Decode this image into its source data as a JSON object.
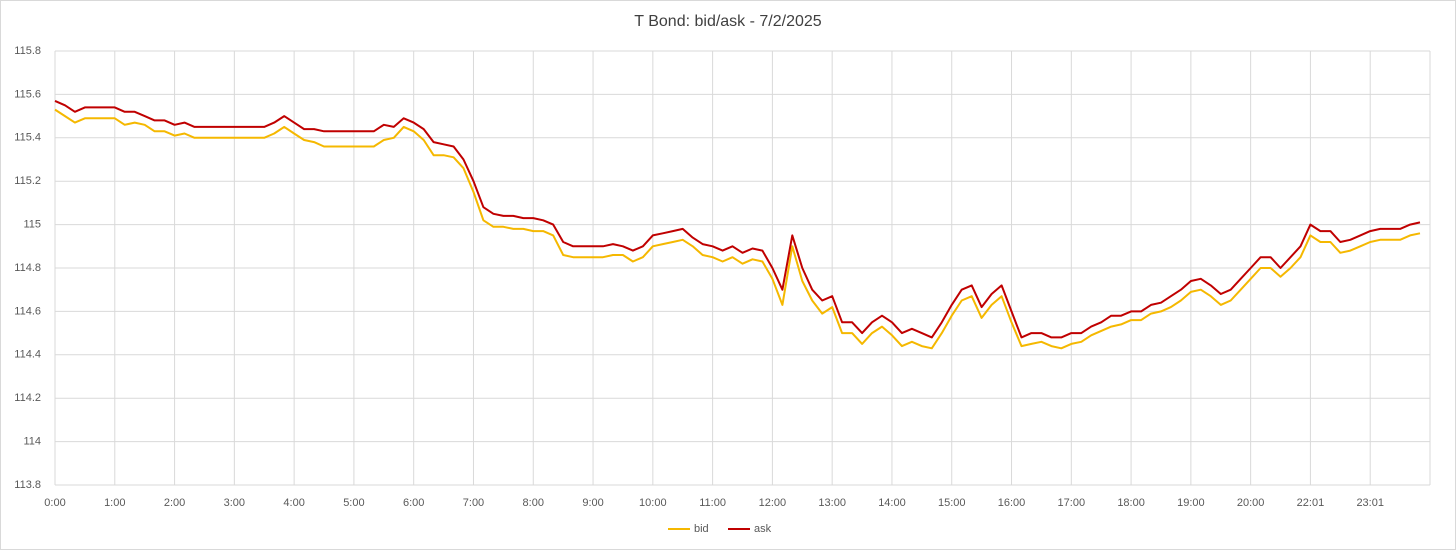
{
  "chart_data": {
    "type": "line",
    "title": "T Bond: bid/ask - 7/2/2025",
    "categories": [
      "0:00",
      null,
      null,
      null,
      null,
      null,
      "1:00",
      null,
      null,
      null,
      null,
      null,
      "2:00",
      null,
      null,
      null,
      null,
      null,
      "3:00",
      null,
      null,
      null,
      null,
      null,
      "4:00",
      null,
      null,
      null,
      null,
      null,
      "5:00",
      null,
      null,
      null,
      null,
      null,
      "6:00",
      null,
      null,
      null,
      null,
      null,
      "7:00",
      null,
      null,
      null,
      null,
      null,
      "8:00",
      null,
      null,
      null,
      null,
      null,
      "9:00",
      null,
      null,
      null,
      null,
      null,
      "10:00",
      null,
      null,
      null,
      null,
      null,
      "11:00",
      null,
      null,
      null,
      null,
      null,
      "12:00",
      null,
      null,
      null,
      null,
      null,
      "13:00",
      null,
      null,
      null,
      null,
      null,
      "14:00",
      null,
      null,
      null,
      null,
      null,
      "15:00",
      null,
      null,
      null,
      null,
      null,
      "16:00",
      null,
      null,
      null,
      null,
      null,
      "17:00",
      null,
      null,
      null,
      null,
      null,
      "18:00",
      null,
      null,
      null,
      null,
      null,
      "19:00",
      null,
      null,
      null,
      null,
      null,
      "20:00",
      null,
      null,
      null,
      null,
      null,
      "22:01",
      null,
      null,
      null,
      null,
      null,
      "23:01",
      null,
      null,
      null,
      null,
      null
    ],
    "series": [
      {
        "name": "bid",
        "color": "#f5b800",
        "values": [
          115.53,
          115.5,
          115.47,
          115.49,
          115.49,
          115.49,
          115.49,
          115.46,
          115.47,
          115.46,
          115.43,
          115.43,
          115.41,
          115.42,
          115.4,
          115.4,
          115.4,
          115.4,
          115.4,
          115.4,
          115.4,
          115.4,
          115.42,
          115.45,
          115.42,
          115.39,
          115.38,
          115.36,
          115.36,
          115.36,
          115.36,
          115.36,
          115.36,
          115.39,
          115.4,
          115.45,
          115.43,
          115.39,
          115.32,
          115.32,
          115.31,
          115.26,
          115.15,
          115.02,
          114.99,
          114.99,
          114.98,
          114.98,
          114.97,
          114.97,
          114.95,
          114.86,
          114.85,
          114.85,
          114.85,
          114.85,
          114.86,
          114.86,
          114.83,
          114.85,
          114.9,
          114.91,
          114.92,
          114.93,
          114.9,
          114.86,
          114.85,
          114.83,
          114.85,
          114.82,
          114.84,
          114.83,
          114.75,
          114.63,
          114.9,
          114.74,
          114.65,
          114.59,
          114.62,
          114.5,
          114.5,
          114.45,
          114.5,
          114.53,
          114.49,
          114.44,
          114.46,
          114.44,
          114.43,
          114.5,
          114.58,
          114.65,
          114.67,
          114.57,
          114.63,
          114.67,
          114.55,
          114.44,
          114.45,
          114.46,
          114.44,
          114.43,
          114.45,
          114.46,
          114.49,
          114.51,
          114.53,
          114.54,
          114.56,
          114.56,
          114.59,
          114.6,
          114.62,
          114.65,
          114.69,
          114.7,
          114.67,
          114.63,
          114.65,
          114.7,
          114.75,
          114.8,
          114.8,
          114.76,
          114.8,
          114.85,
          114.95,
          114.92,
          114.92,
          114.87,
          114.88,
          114.9,
          114.92,
          114.93,
          114.93,
          114.93,
          114.95,
          114.96
        ]
      },
      {
        "name": "ask",
        "color": "#c00000",
        "values": [
          115.57,
          115.55,
          115.52,
          115.54,
          115.54,
          115.54,
          115.54,
          115.52,
          115.52,
          115.5,
          115.48,
          115.48,
          115.46,
          115.47,
          115.45,
          115.45,
          115.45,
          115.45,
          115.45,
          115.45,
          115.45,
          115.45,
          115.47,
          115.5,
          115.47,
          115.44,
          115.44,
          115.43,
          115.43,
          115.43,
          115.43,
          115.43,
          115.43,
          115.46,
          115.45,
          115.49,
          115.47,
          115.44,
          115.38,
          115.37,
          115.36,
          115.3,
          115.2,
          115.08,
          115.05,
          115.04,
          115.04,
          115.03,
          115.03,
          115.02,
          115.0,
          114.92,
          114.9,
          114.9,
          114.9,
          114.9,
          114.91,
          114.9,
          114.88,
          114.9,
          114.95,
          114.96,
          114.97,
          114.98,
          114.94,
          114.91,
          114.9,
          114.88,
          114.9,
          114.87,
          114.89,
          114.88,
          114.8,
          114.7,
          114.95,
          114.8,
          114.7,
          114.65,
          114.67,
          114.55,
          114.55,
          114.5,
          114.55,
          114.58,
          114.55,
          114.5,
          114.52,
          114.5,
          114.48,
          114.55,
          114.63,
          114.7,
          114.72,
          114.62,
          114.68,
          114.72,
          114.6,
          114.48,
          114.5,
          114.5,
          114.48,
          114.48,
          114.5,
          114.5,
          114.53,
          114.55,
          114.58,
          114.58,
          114.6,
          114.6,
          114.63,
          114.64,
          114.67,
          114.7,
          114.74,
          114.75,
          114.72,
          114.68,
          114.7,
          114.75,
          114.8,
          114.85,
          114.85,
          114.8,
          114.85,
          114.9,
          115.0,
          114.97,
          114.97,
          114.92,
          114.93,
          114.95,
          114.97,
          114.98,
          114.98,
          114.98,
          115.0,
          115.01
        ]
      }
    ],
    "ylim": [
      113.8,
      115.8
    ],
    "yticks": [
      113.8,
      114,
      114.2,
      114.4,
      114.6,
      114.8,
      115,
      115.2,
      115.4,
      115.6,
      115.8
    ],
    "grid": true,
    "legend": "bottom"
  }
}
